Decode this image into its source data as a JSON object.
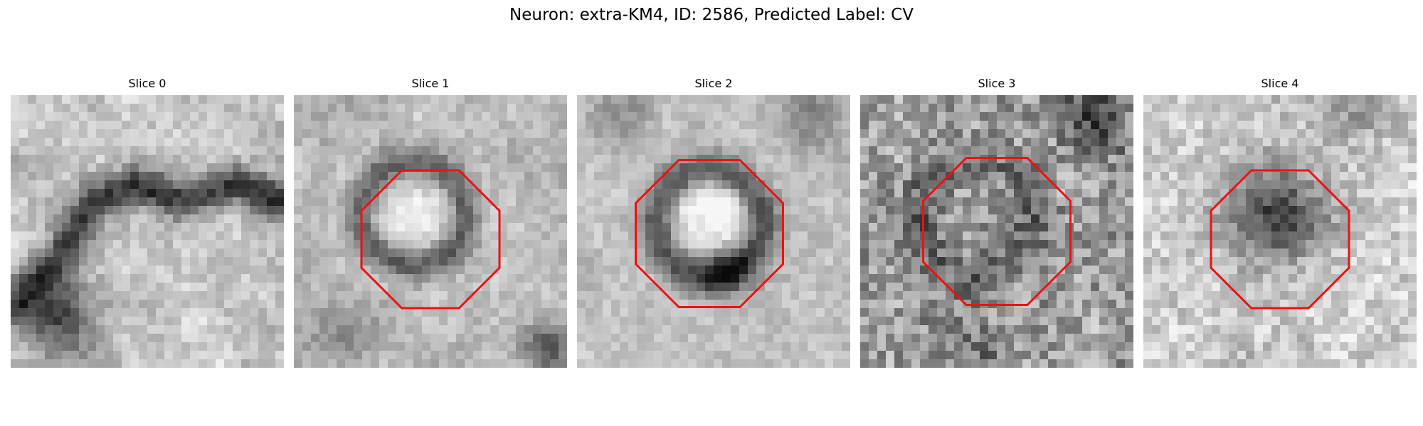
{
  "figure": {
    "title": "Neuron: extra-KM4, ID: 2586, Predicted Label: CV"
  },
  "colors": {
    "outline": "#ee1111"
  },
  "slices": [
    {
      "label": "Slice 0",
      "has_outline": false
    },
    {
      "label": "Slice 1",
      "has_outline": true
    },
    {
      "label": "Slice 2",
      "has_outline": true
    },
    {
      "label": "Slice 3",
      "has_outline": true
    },
    {
      "label": "Slice 4",
      "has_outline": true
    }
  ]
}
